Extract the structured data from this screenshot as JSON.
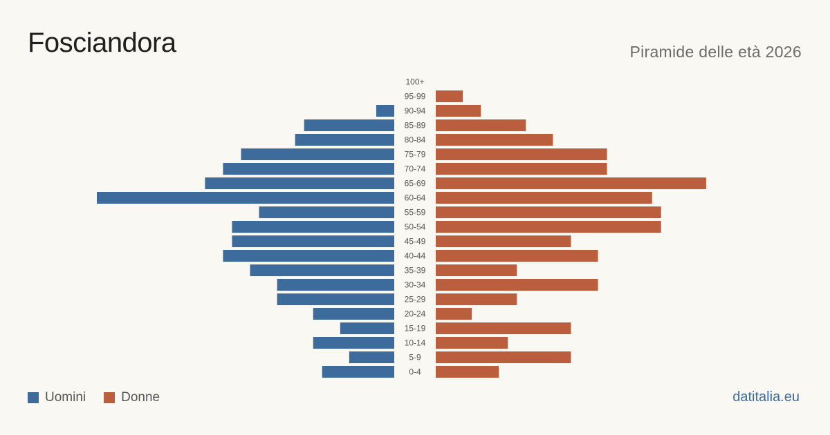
{
  "header": {
    "title": "Fosciandora",
    "subtitle": "Piramide delle età 2026"
  },
  "legend": {
    "men_label": "Uomini",
    "women_label": "Donne"
  },
  "footer": {
    "site": "datitalia.eu"
  },
  "colors": {
    "men": "#3d6b9c",
    "women": "#bb5e3e"
  },
  "chart_data": {
    "type": "bar",
    "orientation": "horizontal-pyramid",
    "categories": [
      "100+",
      "95-99",
      "90-94",
      "85-89",
      "80-84",
      "75-79",
      "70-74",
      "65-69",
      "60-64",
      "55-59",
      "50-54",
      "45-49",
      "40-44",
      "35-39",
      "30-34",
      "25-29",
      "20-24",
      "15-19",
      "10-14",
      "5-9",
      "0-4"
    ],
    "series": [
      {
        "name": "Uomini",
        "values": [
          0,
          0,
          2,
          10,
          11,
          17,
          19,
          21,
          33,
          15,
          18,
          18,
          19,
          16,
          13,
          13,
          9,
          6,
          9,
          5,
          8
        ]
      },
      {
        "name": "Donne",
        "values": [
          0,
          3,
          5,
          10,
          13,
          19,
          19,
          30,
          24,
          25,
          25,
          15,
          18,
          9,
          18,
          9,
          4,
          15,
          8,
          15,
          7
        ]
      }
    ],
    "xlim": [
      0,
      33
    ],
    "legend_position": "bottom-left",
    "grid": false
  }
}
